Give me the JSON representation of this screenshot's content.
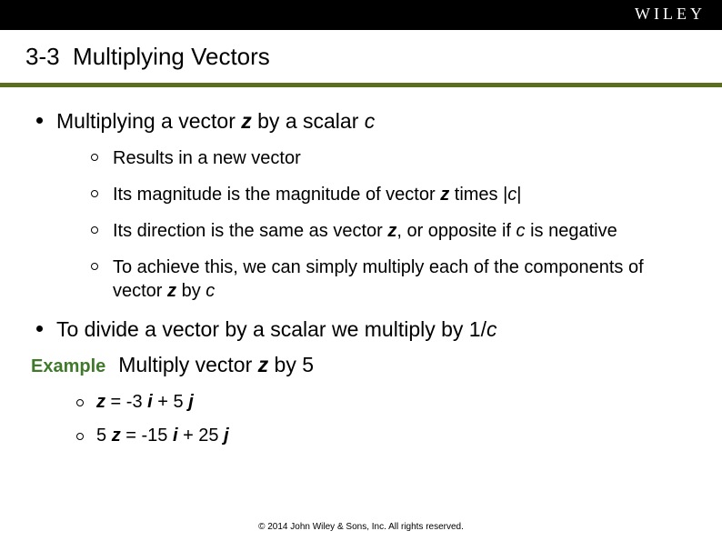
{
  "brand": "WILEY",
  "section_number": "3-3",
  "section_title": "Multiplying Vectors",
  "colors": {
    "topbar_bg": "#000000",
    "brand_text": "#ffffff",
    "accent_border": "#5b6e1f",
    "example_label": "#3f7a2a",
    "body_text": "#000000",
    "background": "#ffffff"
  },
  "typography": {
    "title_fontsize": 26,
    "body_fontsize": 23,
    "sub_fontsize": 20,
    "footer_fontsize": 10,
    "font_family": "Arial"
  },
  "bullets": {
    "b1_pre": "Multiplying a vector ",
    "b1_vec": "z",
    "b1_mid": " by a scalar ",
    "b1_scalar": "c",
    "b1_sub1": "Results in a new vector",
    "b1_sub2_pre": "Its magnitude is the magnitude of vector ",
    "b1_sub2_vec": "z",
    "b1_sub2_mid": " times |",
    "b1_sub2_sc": "c",
    "b1_sub2_post": "|",
    "b1_sub3_pre": "Its direction is the same as vector ",
    "b1_sub3_vec": "z",
    "b1_sub3_mid": ", or opposite if ",
    "b1_sub3_sc": "c",
    "b1_sub3_post": " is negative",
    "b1_sub4_pre": "To achieve this, we can simply multiply each of the components of vector ",
    "b1_sub4_vec": "z",
    "b1_sub4_mid": " by ",
    "b1_sub4_sc": "c",
    "b2_pre": "To divide a vector by a scalar we multiply by 1/",
    "b2_sc": "c"
  },
  "example": {
    "label": "Example",
    "text_pre": "Multiply vector ",
    "text_vec": "z",
    "text_post": " by 5",
    "line1_vec": "z",
    "line1_eq": " = -3 ",
    "line1_i": "i",
    "line1_plus": " + 5 ",
    "line1_j": "j",
    "line2_pre": "5 ",
    "line2_vec": "z",
    "line2_eq": " = -15 ",
    "line2_i": "i",
    "line2_plus": " + 25 ",
    "line2_j": "j"
  },
  "footer": "© 2014 John Wiley & Sons, Inc. All rights reserved."
}
